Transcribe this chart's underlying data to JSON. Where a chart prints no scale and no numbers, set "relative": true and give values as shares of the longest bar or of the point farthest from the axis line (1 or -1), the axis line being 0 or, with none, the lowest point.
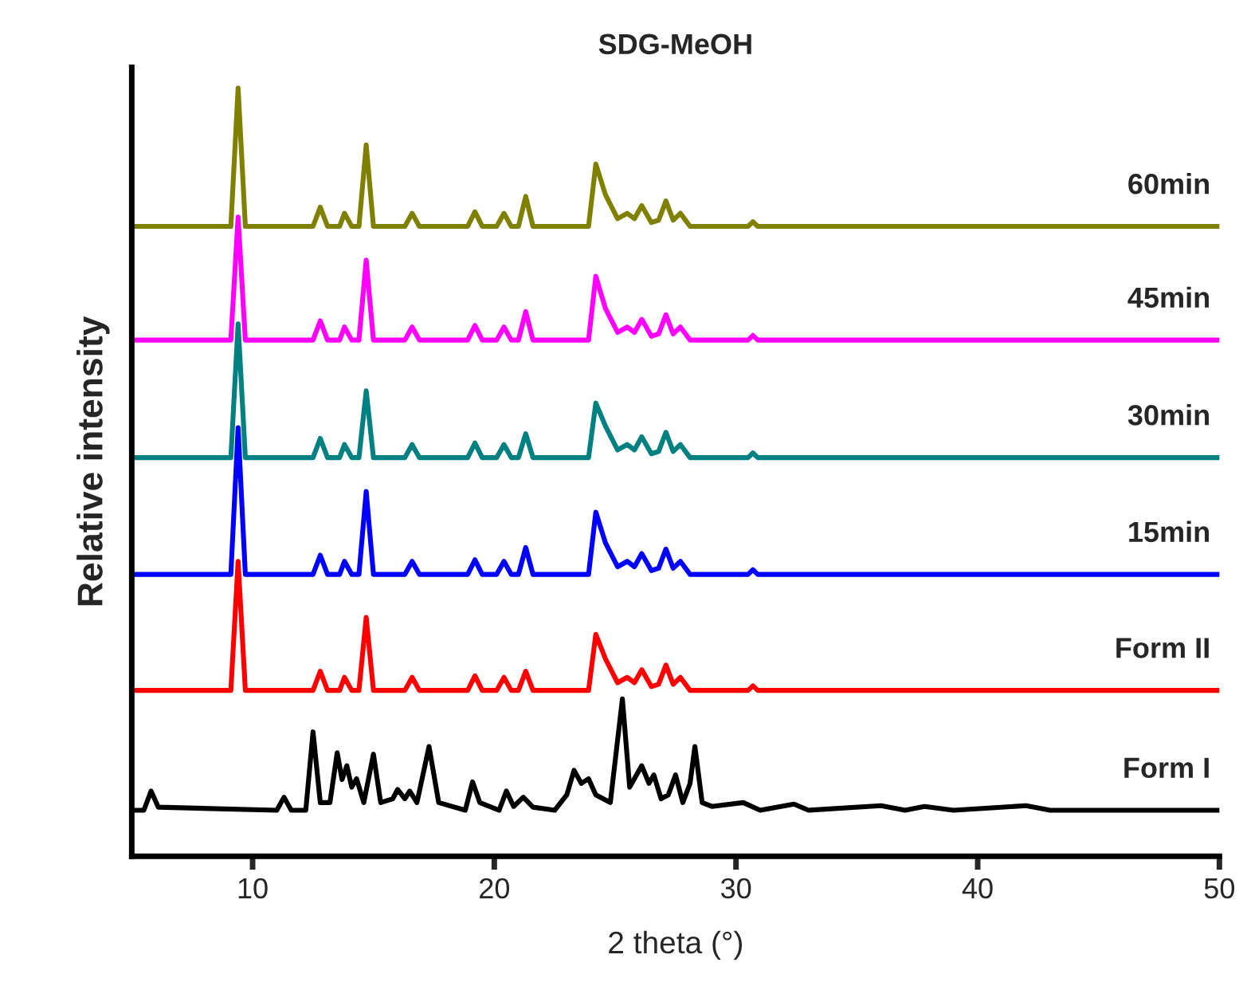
{
  "chart_data": {
    "type": "line",
    "title": "SDG-MeOH",
    "xlabel": "2 theta (°)",
    "ylabel": "Relative intensity",
    "relative": true,
    "xlim": [
      5,
      50
    ],
    "xticks": [
      10,
      20,
      30,
      40,
      50
    ],
    "tick_labels": "x",
    "grid": false,
    "legend": false,
    "x": [
      5,
      9.1,
      9.4,
      9.7,
      12.5,
      12.8,
      13.1,
      13.6,
      13.8,
      14.1,
      14.4,
      14.7,
      15.0,
      16.3,
      16.6,
      16.9,
      18.9,
      19.2,
      19.5,
      20.1,
      20.4,
      20.7,
      21.0,
      21.3,
      21.6,
      23.9,
      24.2,
      24.6,
      25.1,
      25.5,
      25.8,
      26.1,
      26.5,
      26.8,
      27.1,
      27.4,
      27.7,
      28.1,
      30.5,
      30.7,
      30.9,
      50
    ],
    "series": [
      {
        "name": "60min",
        "color": "#808000",
        "values": [
          0.82,
          0.82,
          1.0,
          0.82,
          0.82,
          0.845,
          0.82,
          0.82,
          0.837,
          0.82,
          0.82,
          0.926,
          0.82,
          0.82,
          0.837,
          0.82,
          0.82,
          0.839,
          0.82,
          0.82,
          0.837,
          0.82,
          0.82,
          0.859,
          0.82,
          0.82,
          0.901,
          0.861,
          0.83,
          0.837,
          0.83,
          0.847,
          0.825,
          0.828,
          0.853,
          0.828,
          0.837,
          0.82,
          0.82,
          0.826,
          0.82,
          0.82
        ]
      },
      {
        "name": "45min",
        "color": "#ff00ff",
        "values": [
          0.672,
          0.672,
          0.832,
          0.672,
          0.672,
          0.697,
          0.672,
          0.672,
          0.689,
          0.672,
          0.672,
          0.776,
          0.672,
          0.672,
          0.689,
          0.672,
          0.672,
          0.691,
          0.672,
          0.672,
          0.689,
          0.672,
          0.672,
          0.709,
          0.672,
          0.672,
          0.755,
          0.713,
          0.682,
          0.689,
          0.682,
          0.699,
          0.677,
          0.68,
          0.705,
          0.68,
          0.689,
          0.672,
          0.672,
          0.678,
          0.672,
          0.672
        ]
      },
      {
        "name": "30min",
        "color": "#008080",
        "values": [
          0.519,
          0.519,
          0.693,
          0.519,
          0.519,
          0.544,
          0.519,
          0.519,
          0.536,
          0.519,
          0.519,
          0.606,
          0.519,
          0.519,
          0.536,
          0.519,
          0.519,
          0.538,
          0.519,
          0.519,
          0.536,
          0.519,
          0.519,
          0.55,
          0.519,
          0.519,
          0.59,
          0.56,
          0.529,
          0.536,
          0.529,
          0.546,
          0.524,
          0.527,
          0.552,
          0.527,
          0.536,
          0.519,
          0.519,
          0.525,
          0.519,
          0.519
        ]
      },
      {
        "name": "15min",
        "color": "#0000ff",
        "values": [
          0.367,
          0.367,
          0.558,
          0.367,
          0.367,
          0.392,
          0.367,
          0.367,
          0.384,
          0.367,
          0.367,
          0.475,
          0.367,
          0.367,
          0.384,
          0.367,
          0.367,
          0.386,
          0.367,
          0.367,
          0.384,
          0.367,
          0.367,
          0.402,
          0.367,
          0.367,
          0.448,
          0.408,
          0.377,
          0.384,
          0.377,
          0.394,
          0.372,
          0.375,
          0.4,
          0.375,
          0.384,
          0.367,
          0.367,
          0.373,
          0.367,
          0.367
        ]
      },
      {
        "name": "Form II",
        "color": "#ff0000",
        "values": [
          0.216,
          0.216,
          0.384,
          0.216,
          0.216,
          0.241,
          0.216,
          0.216,
          0.233,
          0.216,
          0.216,
          0.311,
          0.216,
          0.216,
          0.233,
          0.216,
          0.216,
          0.235,
          0.216,
          0.216,
          0.233,
          0.216,
          0.216,
          0.241,
          0.216,
          0.216,
          0.289,
          0.257,
          0.226,
          0.233,
          0.226,
          0.243,
          0.221,
          0.224,
          0.249,
          0.224,
          0.233,
          0.216,
          0.216,
          0.222,
          0.216,
          0.216
        ]
      },
      {
        "name": "Form I",
        "color": "#000000",
        "x": [
          5,
          5.5,
          5.8,
          6.1,
          11.0,
          11.3,
          11.6,
          12.2,
          12.5,
          12.8,
          13.2,
          13.5,
          13.7,
          13.9,
          14.1,
          14.3,
          14.6,
          15.0,
          15.3,
          15.8,
          16.0,
          16.3,
          16.5,
          16.8,
          17.3,
          17.7,
          18.8,
          19.1,
          19.4,
          20.2,
          20.5,
          20.8,
          21.2,
          21.6,
          22.5,
          23.0,
          23.3,
          23.6,
          23.9,
          24.2,
          24.8,
          25.3,
          25.6,
          26.1,
          26.4,
          26.6,
          26.9,
          27.2,
          27.5,
          27.8,
          28.1,
          28.3,
          28.6,
          29.0,
          30.3,
          31.0,
          32.4,
          33.0,
          36.0,
          37.0,
          37.8,
          39.0,
          42.0,
          43.0,
          50
        ],
        "values": [
          0.06,
          0.06,
          0.085,
          0.064,
          0.06,
          0.077,
          0.06,
          0.06,
          0.162,
          0.07,
          0.07,
          0.135,
          0.1,
          0.118,
          0.09,
          0.101,
          0.07,
          0.133,
          0.07,
          0.075,
          0.087,
          0.075,
          0.085,
          0.07,
          0.143,
          0.07,
          0.06,
          0.097,
          0.07,
          0.06,
          0.085,
          0.065,
          0.077,
          0.064,
          0.06,
          0.08,
          0.112,
          0.095,
          0.101,
          0.08,
          0.07,
          0.205,
          0.09,
          0.118,
          0.095,
          0.106,
          0.075,
          0.08,
          0.106,
          0.07,
          0.095,
          0.143,
          0.07,
          0.065,
          0.07,
          0.06,
          0.068,
          0.06,
          0.066,
          0.06,
          0.065,
          0.06,
          0.066,
          0.06,
          0.06
        ]
      }
    ]
  }
}
